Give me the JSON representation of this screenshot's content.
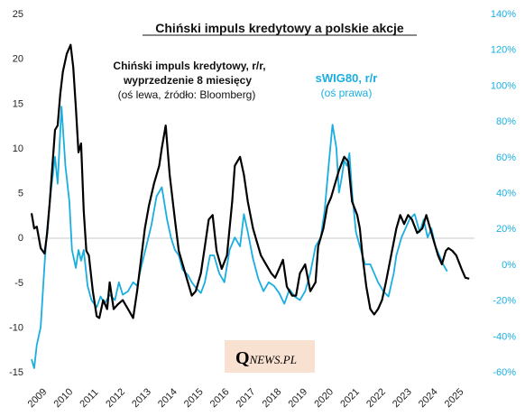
{
  "chart_data": {
    "type": "line",
    "title": "Chiński impuls kredytowy  a polskie akcje",
    "annotations": {
      "left_series": [
        "Chiński impuls kredytowy, r/r,",
        "wyprzedzenie 8 miesięcy",
        "(oś lewa, źródło: Bloomberg)"
      ],
      "right_series": [
        "sWIG80, r/r",
        "(oś prawa)"
      ]
    },
    "logo": {
      "q": "Q",
      "rest": "NEWS.PL"
    },
    "colors": {
      "left": "#000000",
      "right": "#1aaee0",
      "logo_bg": "#f8e1d0"
    },
    "x_ticks": [
      "2009",
      "2010",
      "2011",
      "2012",
      "2013",
      "2014",
      "2015",
      "2016",
      "2017",
      "2018",
      "2019",
      "2020",
      "2021",
      "2022",
      "2023",
      "2024",
      "2025"
    ],
    "y_left": {
      "ticks": [
        "25",
        "20",
        "15",
        "10",
        "5",
        "0",
        "-5",
        "-10",
        "-15"
      ],
      "ylim": [
        -15,
        25
      ]
    },
    "y_right": {
      "ticks": [
        "140%",
        "120%",
        "100%",
        "80%",
        "60%",
        "40%",
        "20%",
        "0%",
        "-20%",
        "-40%",
        "-60%"
      ],
      "ylim": [
        -60,
        140
      ]
    },
    "grid": false,
    "series": [
      {
        "axis": "left",
        "color": "#000000",
        "x": [
          2009.0,
          2009.1,
          2009.2,
          2009.35,
          2009.5,
          2009.6,
          2009.7,
          2009.8,
          2009.9,
          2010.0,
          2010.1,
          2010.2,
          2010.35,
          2010.5,
          2010.6,
          2010.7,
          2010.8,
          2010.9,
          2011.0,
          2011.1,
          2011.2,
          2011.35,
          2011.5,
          2011.6,
          2011.75,
          2011.9,
          2012.0,
          2012.15,
          2012.3,
          2012.5,
          2012.7,
          2012.9,
          2013.05,
          2013.2,
          2013.35,
          2013.5,
          2013.7,
          2013.9,
          2014.0,
          2014.15,
          2014.3,
          2014.5,
          2014.65,
          2014.8,
          2015.0,
          2015.15,
          2015.3,
          2015.5,
          2015.65,
          2015.8,
          2015.95,
          2016.1,
          2016.3,
          2016.5,
          2016.7,
          2016.8,
          2017.0,
          2017.15,
          2017.3,
          2017.5,
          2017.65,
          2017.8,
          2018.0,
          2018.2,
          2018.35,
          2018.5,
          2018.65,
          2018.8,
          2019.0,
          2019.15,
          2019.3,
          2019.5,
          2019.7,
          2019.9,
          2020.0,
          2020.2,
          2020.35,
          2020.5,
          2020.6,
          2020.8,
          2021.0,
          2021.15,
          2021.3,
          2021.5,
          2021.6,
          2021.7,
          2021.85,
          2022.0,
          2022.15,
          2022.3,
          2022.45,
          2022.6,
          2022.8,
          2023.0,
          2023.15,
          2023.3,
          2023.45,
          2023.6,
          2023.8,
          2024.0,
          2024.15,
          2024.3,
          2024.45,
          2024.6,
          2024.75,
          2024.9,
          2025.0,
          2025.15,
          2025.3,
          2025.5,
          2025.65,
          2025.8
        ],
        "values": [
          2.7,
          1.0,
          1.2,
          -1.2,
          -1.8,
          0.5,
          4.0,
          8.0,
          12.0,
          12.5,
          16.0,
          18.5,
          20.5,
          21.5,
          19.0,
          14.5,
          9.5,
          10.5,
          3.0,
          -1.5,
          -2.0,
          -6.0,
          -8.8,
          -9.0,
          -7.0,
          -8.0,
          -5.0,
          -8.0,
          -7.5,
          -7.0,
          -8.0,
          -9.0,
          -6.0,
          -2.5,
          1.0,
          3.5,
          6.0,
          8.0,
          10.0,
          12.5,
          7.0,
          2.0,
          -1.5,
          -3.0,
          -5.0,
          -6.5,
          -6.0,
          -4.0,
          -1.0,
          2.0,
          2.5,
          -1.5,
          -3.5,
          -2.0,
          4.0,
          8.0,
          9.0,
          7.0,
          4.0,
          1.0,
          -0.5,
          -2.0,
          -3.0,
          -4.0,
          -4.5,
          -3.5,
          -2.5,
          -5.5,
          -6.5,
          -6.5,
          -4.0,
          -3.0,
          -6.0,
          -5.0,
          -1.0,
          1.0,
          3.5,
          4.5,
          5.5,
          7.5,
          9.0,
          8.5,
          4.0,
          2.5,
          1.0,
          -2.0,
          -5.5,
          -8.0,
          -8.6,
          -8.0,
          -7.0,
          -5.0,
          -2.0,
          1.0,
          2.5,
          1.5,
          2.5,
          2.0,
          0.5,
          1.0,
          2.5,
          1.0,
          -0.5,
          -2.0,
          -3.0,
          -1.5,
          -1.2,
          -1.5,
          -2.0,
          -3.5,
          -4.5,
          -4.6
        ]
      },
      {
        "axis": "right",
        "color": "#1aaee0",
        "x": [
          2009.0,
          2009.1,
          2009.2,
          2009.35,
          2009.5,
          2009.6,
          2009.75,
          2009.9,
          2010.0,
          2010.15,
          2010.3,
          2010.45,
          2010.55,
          2010.7,
          2010.8,
          2010.9,
          2011.0,
          2011.15,
          2011.3,
          2011.5,
          2011.65,
          2011.8,
          2012.0,
          2012.2,
          2012.35,
          2012.5,
          2012.7,
          2012.9,
          2013.05,
          2013.2,
          2013.4,
          2013.6,
          2013.8,
          2014.0,
          2014.2,
          2014.35,
          2014.5,
          2014.65,
          2014.8,
          2015.0,
          2015.15,
          2015.3,
          2015.5,
          2015.65,
          2015.85,
          2016.0,
          2016.2,
          2016.4,
          2016.6,
          2016.8,
          2017.0,
          2017.15,
          2017.3,
          2017.5,
          2017.7,
          2017.9,
          2018.1,
          2018.3,
          2018.5,
          2018.7,
          2018.9,
          2019.1,
          2019.3,
          2019.5,
          2019.7,
          2019.9,
          2020.1,
          2020.25,
          2020.4,
          2020.55,
          2020.7,
          2020.8,
          2020.9,
          2021.0,
          2021.1,
          2021.2,
          2021.3,
          2021.45,
          2021.6,
          2021.8,
          2022.0,
          2022.15,
          2022.3,
          2022.5,
          2022.7,
          2022.9,
          2023.0,
          2023.2,
          2023.35,
          2023.5,
          2023.7,
          2023.9,
          2024.05,
          2024.2,
          2024.35,
          2024.5,
          2024.65,
          2024.8,
          2024.95
        ],
        "values": [
          -53,
          -58,
          -45,
          -35,
          0,
          20,
          42,
          60,
          45,
          88,
          55,
          35,
          8,
          -2,
          8,
          2,
          8,
          -12,
          -20,
          -24,
          -18,
          -22,
          -17,
          -20,
          -10,
          -17,
          -15,
          -10,
          -12,
          -2,
          10,
          22,
          38,
          43,
          25,
          15,
          8,
          5,
          -3,
          -6,
          -10,
          -13,
          -16,
          -10,
          5,
          5,
          -5,
          -10,
          8,
          15,
          10,
          28,
          18,
          3,
          -8,
          -15,
          -10,
          -12,
          -16,
          -22,
          -14,
          -18,
          -20,
          -15,
          -5,
          10,
          15,
          30,
          55,
          78,
          65,
          40,
          48,
          58,
          55,
          62,
          40,
          18,
          10,
          0,
          0,
          -5,
          -10,
          -15,
          -18,
          -5,
          5,
          15,
          20,
          25,
          28,
          18,
          25,
          15,
          20,
          10,
          5,
          0,
          -4
        ]
      }
    ]
  }
}
